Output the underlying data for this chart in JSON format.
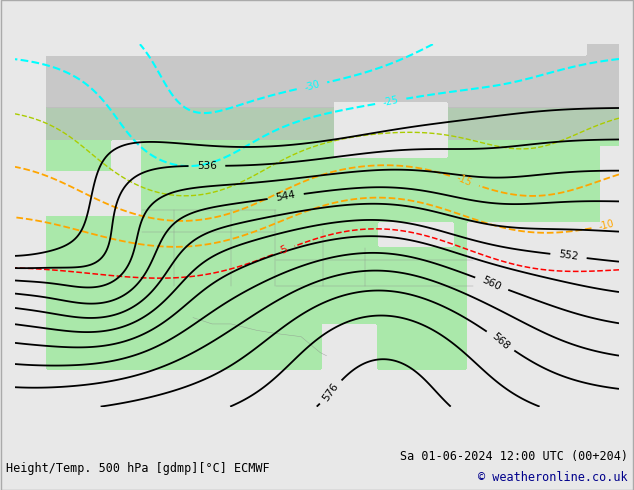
{
  "title_left": "Height/Temp. 500 hPa [gdmp][°C] ECMWF",
  "title_right": "Sa 01-06-2024 12:00 UTC (00+204)",
  "copyright": "© weatheronline.co.uk",
  "bg_color": "#e8e8e8",
  "land_color": "#c8c8c8",
  "green_color": "#aae8aa",
  "fig_width": 6.34,
  "fig_height": 4.9,
  "dpi": 100,
  "copyright_color": "#00008B"
}
